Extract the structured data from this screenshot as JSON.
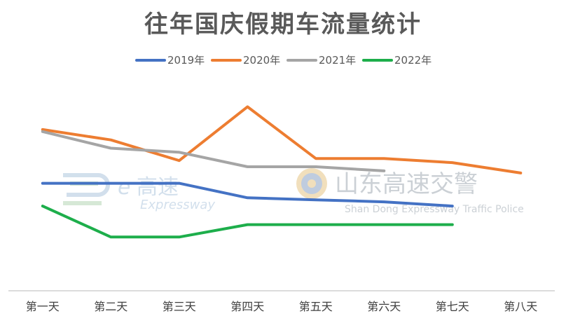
{
  "chart_data": {
    "type": "line",
    "title": "往年国庆假期车流量统计",
    "xlabel": "",
    "ylabel": "",
    "categories": [
      "第一天",
      "第二天",
      "第三天",
      "第四天",
      "第五天",
      "第六天",
      "第七天",
      "第八天"
    ],
    "ylim": [
      0,
      100
    ],
    "grid": false,
    "legend_position": "top",
    "series": [
      {
        "name": "2019年",
        "color": "#4472C4",
        "values": [
          52,
          52,
          52,
          45,
          44,
          43,
          41,
          null
        ]
      },
      {
        "name": "2020年",
        "color": "#ED7D31",
        "values": [
          78,
          73,
          63,
          89,
          64,
          64,
          62,
          57
        ]
      },
      {
        "name": "2021年",
        "color": "#A5A5A5",
        "values": [
          77,
          69,
          67,
          60,
          60,
          58,
          null,
          null
        ]
      },
      {
        "name": "2022年",
        "color": "#1DAE4B",
        "values": [
          41,
          26,
          26,
          32,
          32,
          32,
          32,
          null
        ]
      }
    ]
  },
  "watermarks": {
    "left_brand": "高速",
    "left_brand_prefix": "e",
    "left_sub": "Expressway",
    "right_brand": "山东高速交警",
    "right_sub": "Shan Dong Expressway Traffic Police"
  }
}
